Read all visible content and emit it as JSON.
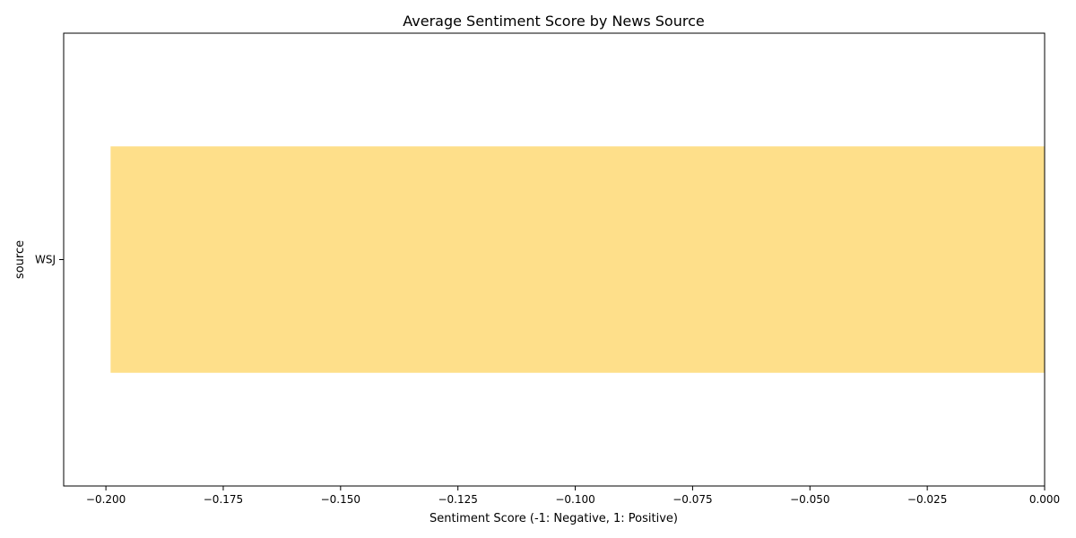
{
  "chart_data": {
    "type": "bar",
    "orientation": "horizontal",
    "title": "Average Sentiment Score by News Source",
    "xlabel": "Sentiment Score (-1: Negative, 1: Positive)",
    "ylabel": "source",
    "categories": [
      "WSJ"
    ],
    "values": [
      -0.199
    ],
    "xlim": [
      -0.209,
      0.0
    ],
    "xticks": [
      -0.2,
      -0.175,
      -0.15,
      -0.125,
      -0.1,
      -0.075,
      -0.05,
      -0.025,
      0.0
    ],
    "xtick_labels": [
      "−0.200",
      "−0.175",
      "−0.150",
      "−0.125",
      "−0.100",
      "−0.075",
      "−0.050",
      "−0.025",
      "0.000"
    ],
    "grid": false,
    "legend": false,
    "bar_color": "#fedf8a"
  }
}
